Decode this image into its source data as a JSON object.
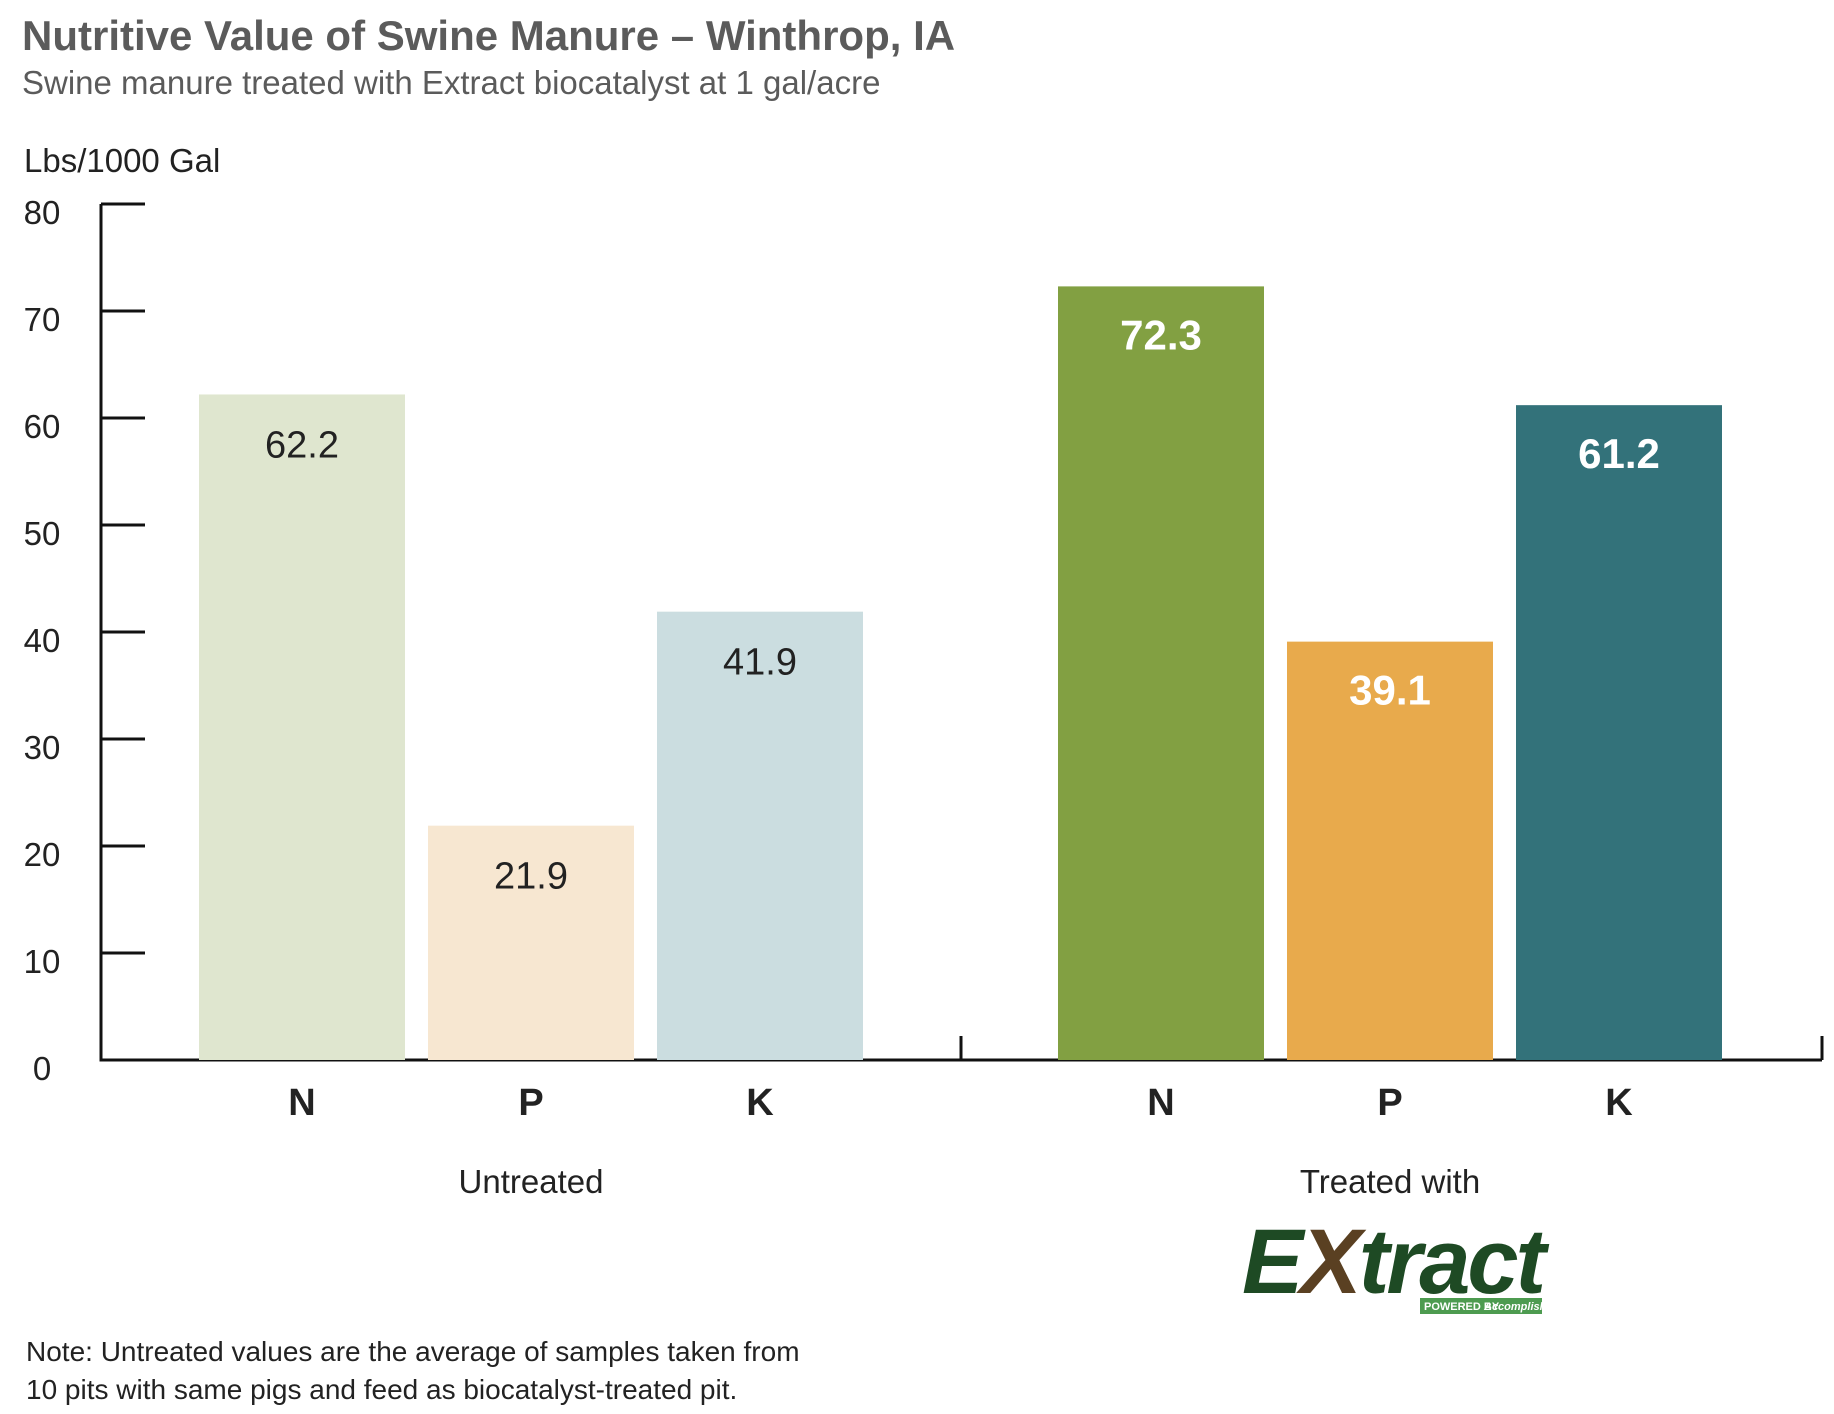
{
  "header": {
    "title": "Nutritive Value of Swine Manure – Winthrop, IA",
    "subtitle": "Swine manure treated with Extract biocatalyst at 1 gal/acre"
  },
  "note": {
    "line1": "Note: Untreated values are the average of samples taken from",
    "line2": "10 pits with same pigs and feed as biocatalyst-treated pit."
  },
  "logo": {
    "word_start": "E",
    "word_x": "X",
    "word_end": "tract",
    "tag_small": "POWERED BY",
    "tag_brand": "Accomplish"
  },
  "chart_data": {
    "type": "bar",
    "ylabel": "Lbs/1000 Gal",
    "ylim": [
      0,
      80
    ],
    "yticks": [
      0,
      10,
      20,
      30,
      40,
      50,
      60,
      70,
      80
    ],
    "grid": false,
    "groups": [
      {
        "name": "Untreated",
        "categories": [
          "N",
          "P",
          "K"
        ],
        "values": [
          62.2,
          21.9,
          41.9
        ],
        "labels": [
          "62.2",
          "21.9",
          "41.9"
        ],
        "colors": [
          "#dfe6cf",
          "#f7e7d1",
          "#cbdde0"
        ],
        "label_style": "light"
      },
      {
        "name": "Treated with",
        "categories": [
          "N",
          "P",
          "K"
        ],
        "values": [
          72.3,
          39.1,
          61.2
        ],
        "labels": [
          "72.3",
          "39.1",
          "61.2"
        ],
        "colors": [
          "#82a042",
          "#e8aa4c",
          "#33727a"
        ],
        "label_style": "dark"
      }
    ]
  }
}
